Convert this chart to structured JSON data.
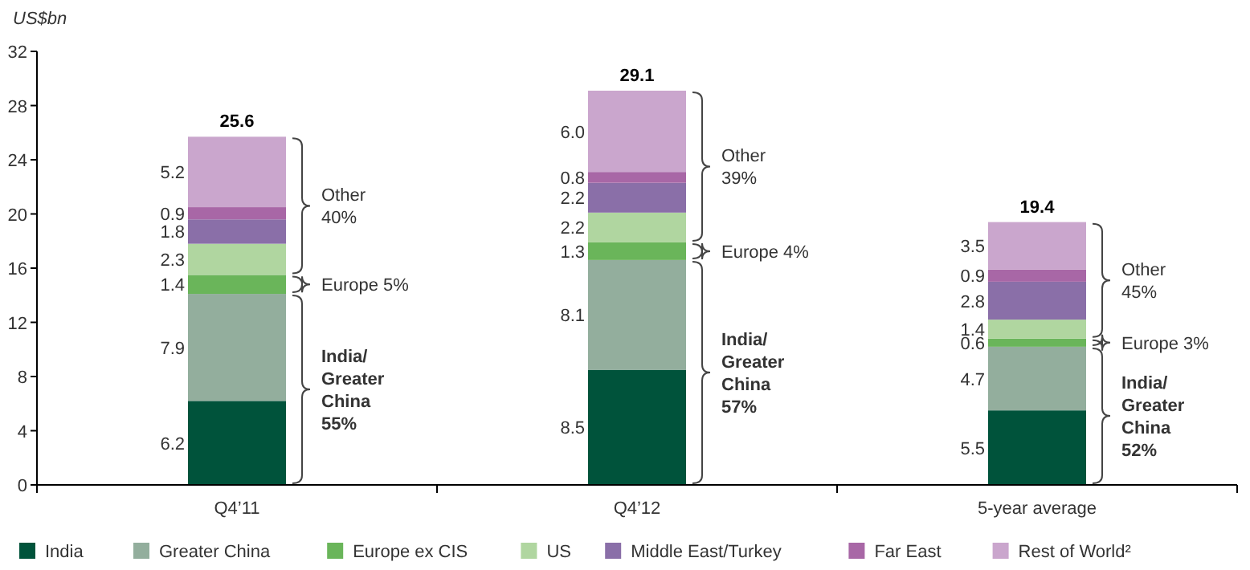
{
  "chart_data": {
    "type": "bar",
    "stacked": true,
    "ylabel": "US$bn",
    "categories": [
      "Q4’11",
      "Q4’12",
      "5-year average"
    ],
    "series": [
      {
        "name": "India",
        "color": "#00533b",
        "values": [
          6.2,
          8.5,
          5.5
        ],
        "value_labels": [
          "6.2",
          "8.5",
          "5.5"
        ]
      },
      {
        "name": "Greater China",
        "color": "#93ae9d",
        "values": [
          7.9,
          8.1,
          4.7
        ],
        "value_labels": [
          "7.9",
          "8.1",
          "4.7"
        ]
      },
      {
        "name": "Europe ex CIS",
        "color": "#6ab55a",
        "values": [
          1.4,
          1.3,
          0.6
        ],
        "value_labels": [
          "1.4",
          "1.3",
          "0.6"
        ]
      },
      {
        "name": "US",
        "color": "#b0d6a0",
        "values": [
          2.3,
          2.2,
          1.4
        ],
        "value_labels": [
          "2.3",
          "2.2",
          "1.4"
        ]
      },
      {
        "name": "Middle East/Turkey",
        "color": "#8a6fa8",
        "values": [
          1.8,
          2.2,
          2.8
        ],
        "value_labels": [
          "1.8",
          "2.2",
          "2.8"
        ]
      },
      {
        "name": "Far East",
        "color": "#a867a6",
        "values": [
          0.9,
          0.8,
          0.9
        ],
        "value_labels": [
          "0.9",
          "0.8",
          "0.9"
        ]
      },
      {
        "name": "Rest of World²",
        "color": "#caa6cd",
        "values": [
          5.2,
          6.0,
          3.5
        ],
        "value_labels": [
          "5.2",
          "6.0",
          "3.5"
        ]
      }
    ],
    "ylim": [
      0,
      32
    ],
    "yticks": [
      0,
      4,
      8,
      12,
      16,
      20,
      24,
      28,
      32
    ],
    "grid": false,
    "legend": "bottom",
    "totals": [
      "25.6",
      "29.1",
      "19.4"
    ],
    "annotations": [
      "India/\nGreater\nChina\n55%",
      "Europe 5%",
      "Other\n40%",
      "India/\nGreater\nChina\n57%",
      "Europe 4%",
      "Other\n39%",
      "India/\nGreater\nChina\n52%",
      "Europe 3%",
      "Other\n45%"
    ]
  }
}
